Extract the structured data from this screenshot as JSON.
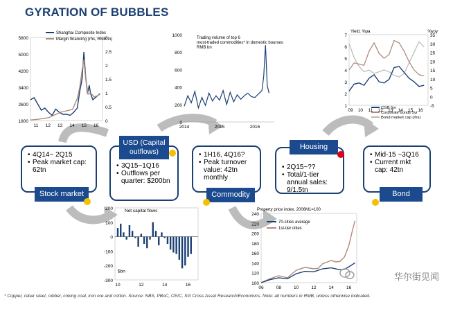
{
  "title": "GYRATION OF BUBBLES",
  "footnote": "* Copper, rebar steel, rubber, coking coal, iron ore and cotton. Source: NBS, PBoC, CEIC, SG Cross Asset Research/Economics. Note: all numbers in RMB, unless otherwise indicated.",
  "watermark": "华尔街见闻",
  "colors": {
    "navy": "#1b3f73",
    "label_bg": "#1b4a8f",
    "yellow_dot": "#f2c200",
    "red_dot": "#e3001b",
    "arrow": "#bcbcbc"
  },
  "stages": [
    {
      "label": "Stock market",
      "bullets": [
        "4Q14~ 2Q15",
        "Peak market cap: 62tn"
      ],
      "dot": "yellow"
    },
    {
      "label": "USD (Capital outflows)",
      "bullets": [
        "3Q15~1Q16",
        "Outflows per quarter: $200bn"
      ],
      "dot": "yellow"
    },
    {
      "label": "Commodity",
      "bullets": [
        "1H16, 4Q16?",
        "Peak turnover value: 42tn monthly"
      ],
      "dot": "yellow"
    },
    {
      "label": "Housing",
      "bullets": [
        "2Q15~??",
        "Total/1-tier annual sales: 9/1.5tn"
      ],
      "dot": "red"
    },
    {
      "label": "Bond",
      "bullets": [
        "Mid-15 ~3Q16",
        "Current mkt cap: 42tn"
      ],
      "dot": "yellow"
    }
  ],
  "chart_data": [
    {
      "type": "line",
      "legend": [
        "Shanghai Composite Index",
        "Margin financing (rhs, RMB tn)"
      ],
      "x_ticks": [
        "11",
        "12",
        "13",
        "14",
        "15",
        "16"
      ],
      "y_left_ticks": [
        "1800",
        "2600",
        "3400",
        "4200",
        "5000",
        "5800"
      ],
      "y_right_ticks": [
        "0",
        "0.5",
        "1",
        "1.5",
        "2",
        "2.5",
        "3"
      ],
      "ylim": [
        1800,
        5800
      ],
      "y2lim": [
        0,
        3
      ],
      "series": [
        {
          "name": "Shanghai Composite Index",
          "axis": "left",
          "color": "#1b3f73",
          "x": [
            2011.0,
            2011.3,
            2011.6,
            2011.9,
            2012.2,
            2012.5,
            2012.8,
            2013.1,
            2013.4,
            2013.7,
            2014.0,
            2014.3,
            2014.6,
            2014.9,
            2015.1,
            2015.3,
            2015.45,
            2015.6,
            2015.75,
            2015.9,
            2016.0,
            2016.2,
            2016.5,
            2016.8
          ],
          "y": [
            2800,
            2900,
            2600,
            2300,
            2400,
            2200,
            2050,
            2350,
            2200,
            2100,
            2100,
            2050,
            2200,
            2400,
            3200,
            3800,
            5100,
            3900,
            3100,
            3500,
            3100,
            2800,
            2950,
            3100
          ]
        },
        {
          "name": "Margin financing (rhs, RMB tn)",
          "axis": "right",
          "color": "#b08a7a",
          "x": [
            2011.0,
            2011.5,
            2012.0,
            2012.5,
            2013.0,
            2013.5,
            2014.0,
            2014.5,
            2014.9,
            2015.1,
            2015.3,
            2015.45,
            2015.6,
            2015.8,
            2016.0,
            2016.3,
            2016.6,
            2016.8
          ],
          "y": [
            0.02,
            0.04,
            0.07,
            0.1,
            0.2,
            0.3,
            0.35,
            0.4,
            0.8,
            1.2,
            1.8,
            2.2,
            1.5,
            0.95,
            1.0,
            0.85,
            0.9,
            0.95
          ]
        }
      ]
    },
    {
      "type": "line",
      "legend": [
        "Trading volume of top 6 most-traded commodities* in domestic bourses RMB bn"
      ],
      "x_ticks": [
        "2014",
        "2015",
        "2016"
      ],
      "y_ticks": [
        "0",
        "200",
        "400",
        "600",
        "800",
        "1000"
      ],
      "ylim": [
        0,
        1000
      ],
      "series": [
        {
          "name": "Trading volume",
          "color": "#1b3f73",
          "x": [
            2014.0,
            2014.1,
            2014.2,
            2014.3,
            2014.4,
            2014.5,
            2014.6,
            2014.7,
            2014.8,
            2014.9,
            2015.0,
            2015.1,
            2015.2,
            2015.3,
            2015.4,
            2015.5,
            2015.6,
            2015.7,
            2015.8,
            2015.9,
            2016.0,
            2016.1,
            2016.2,
            2016.25,
            2016.3,
            2016.35,
            2016.4
          ],
          "y": [
            180,
            300,
            220,
            350,
            160,
            280,
            190,
            330,
            240,
            300,
            250,
            360,
            200,
            340,
            230,
            310,
            260,
            300,
            330,
            290,
            280,
            320,
            360,
            520,
            880,
            420,
            330
          ]
        }
      ]
    },
    {
      "type": "line",
      "legend": [
        "CGB 5yr",
        "Corporate bonds 5yr",
        "Bond market cap (rhs)"
      ],
      "header_left": "Yield, %pa",
      "header_right": "%yoy",
      "x_ticks": [
        "09",
        "10",
        "11",
        "12",
        "13",
        "14",
        "15",
        "16"
      ],
      "y_left_ticks": [
        "1",
        "2",
        "3",
        "4",
        "5",
        "6",
        "7"
      ],
      "y_right_ticks": [
        "-5",
        "0",
        "5",
        "10",
        "15",
        "20",
        "25",
        "30",
        "35"
      ],
      "ylim": [
        1,
        7
      ],
      "y2lim": [
        -5,
        35
      ],
      "series": [
        {
          "name": "CGB 5yr",
          "axis": "left",
          "color": "#1b3f73",
          "x": [
            2009,
            2009.5,
            2010,
            2010.5,
            2011,
            2011.5,
            2012,
            2012.5,
            2013,
            2013.5,
            2014,
            2014.5,
            2015,
            2015.5,
            2016,
            2016.5
          ],
          "y": [
            2.2,
            2.8,
            2.9,
            2.7,
            3.3,
            3.6,
            3.0,
            2.9,
            3.2,
            4.2,
            4.3,
            3.8,
            3.3,
            3.0,
            2.6,
            2.7
          ]
        },
        {
          "name": "Corporate bonds 5yr",
          "axis": "left",
          "color": "#b08a7a",
          "x": [
            2009,
            2009.5,
            2010,
            2010.5,
            2011,
            2011.5,
            2012,
            2012.5,
            2013,
            2013.5,
            2014,
            2014.5,
            2015,
            2015.5,
            2016,
            2016.5
          ],
          "y": [
            4.0,
            4.6,
            4.5,
            4.4,
            5.6,
            6.3,
            5.4,
            5.0,
            5.3,
            6.5,
            6.3,
            5.6,
            4.7,
            4.0,
            3.6,
            3.5
          ]
        },
        {
          "name": "Bond market cap (rhs)",
          "axis": "right",
          "color": "#b8b8b8",
          "x": [
            2009,
            2009.5,
            2010,
            2010.5,
            2011,
            2011.5,
            2012,
            2012.5,
            2013,
            2013.5,
            2014,
            2014.5,
            2015,
            2015.5,
            2016,
            2016.5
          ],
          "y": [
            30,
            22,
            17,
            14,
            15,
            13,
            14,
            15,
            14,
            12,
            11,
            13,
            19,
            25,
            31,
            28
          ]
        }
      ]
    },
    {
      "type": "bar",
      "legend": [
        "Net capital flows"
      ],
      "unit_label": "$bn",
      "x_ticks": [
        "10",
        "12",
        "14",
        "16"
      ],
      "y_ticks": [
        "200",
        "100",
        "0",
        "-100",
        "-200",
        "-300"
      ],
      "ylim": [
        -300,
        200
      ],
      "x": [
        2010.0,
        2010.25,
        2010.5,
        2010.75,
        2011.0,
        2011.25,
        2011.5,
        2011.75,
        2012.0,
        2012.25,
        2012.5,
        2012.75,
        2013.0,
        2013.25,
        2013.5,
        2013.75,
        2014.0,
        2014.25,
        2014.5,
        2014.75,
        2015.0,
        2015.25,
        2015.5,
        2015.75,
        2016.0,
        2016.25
      ],
      "values": [
        60,
        90,
        30,
        -20,
        80,
        40,
        -10,
        -70,
        20,
        -50,
        -80,
        -20,
        100,
        40,
        -60,
        30,
        -10,
        -50,
        -90,
        -110,
        -120,
        -160,
        -220,
        -200,
        -140,
        -120
      ]
    },
    {
      "type": "line",
      "legend": [
        "70-cities average",
        "1st-tier cities"
      ],
      "header": "Property price index, 2006M1=100",
      "x_ticks": [
        "06",
        "08",
        "10",
        "12",
        "14",
        "16"
      ],
      "y_ticks": [
        "100",
        "120",
        "140",
        "160",
        "180",
        "200",
        "220",
        "240"
      ],
      "ylim": [
        100,
        240
      ],
      "series": [
        {
          "name": "70-cities average",
          "color": "#1b3f73",
          "x": [
            2006,
            2007,
            2008,
            2009,
            2010,
            2011,
            2012,
            2013,
            2014,
            2015,
            2015.5,
            2016,
            2016.7
          ],
          "y": [
            100,
            106,
            110,
            108,
            118,
            123,
            122,
            128,
            130,
            126,
            127,
            132,
            140
          ]
        },
        {
          "name": "1st-tier cities",
          "color": "#b08a7a",
          "x": [
            2006,
            2007,
            2008,
            2009,
            2010,
            2011,
            2012,
            2012.5,
            2013,
            2014,
            2014.5,
            2015,
            2015.5,
            2016,
            2016.4,
            2016.7
          ],
          "y": [
            100,
            108,
            114,
            110,
            125,
            131,
            128,
            129,
            138,
            145,
            142,
            143,
            152,
            175,
            205,
            225
          ]
        }
      ]
    }
  ]
}
